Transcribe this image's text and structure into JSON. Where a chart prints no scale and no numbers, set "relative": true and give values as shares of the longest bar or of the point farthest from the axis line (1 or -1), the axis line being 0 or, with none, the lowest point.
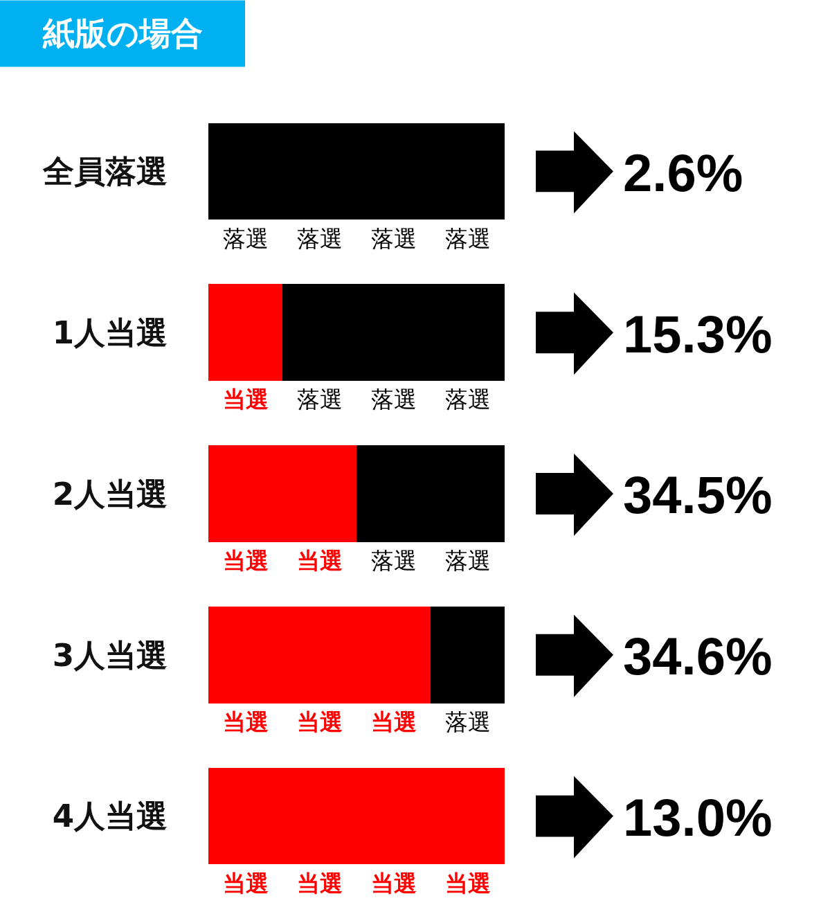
{
  "chart_data": {
    "type": "bar",
    "orientation": "horizontal",
    "stacked": true,
    "relative": true,
    "title": "紙版の場合",
    "categories": [
      "全員落選",
      "1人当選",
      "2人当選",
      "3人当選",
      "4人当選"
    ],
    "series": [
      {
        "name": "当選",
        "color": "#ff0000",
        "values": [
          0,
          0.25,
          0.5,
          0.75,
          1
        ]
      },
      {
        "name": "落選",
        "color": "#000000",
        "values": [
          1,
          0.75,
          0.5,
          0.25,
          0
        ]
      }
    ],
    "annotations": [
      "2.6%",
      "15.3%",
      "34.5%",
      "34.6%",
      "13.0%"
    ]
  }
}
